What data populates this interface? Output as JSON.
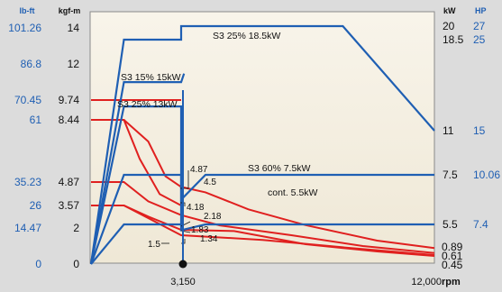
{
  "chart_data": {
    "type": "line",
    "title": "",
    "x_axis": {
      "label": "rpm",
      "ticks": [
        {
          "value": 3150,
          "label": "3,150"
        },
        {
          "value": 12000,
          "label": "12,000"
        }
      ],
      "range": [
        0,
        12000
      ],
      "marker": {
        "value": 3150
      }
    },
    "left_axes": {
      "unit_lbft": "lb-ft",
      "unit_kgfm": "kgf-m",
      "ticks": [
        {
          "kgfm": 14,
          "kgfm_label": "14",
          "lbft_label": "101.26"
        },
        {
          "kgfm": 12,
          "kgfm_label": "12",
          "lbft_label": "86.8"
        },
        {
          "kgfm": 9.74,
          "kgfm_label": "9.74",
          "lbft_label": "70.45"
        },
        {
          "kgfm": 8.44,
          "kgfm_label": "8.44",
          "lbft_label": "61"
        },
        {
          "kgfm": 4.87,
          "kgfm_label": "4.87",
          "lbft_label": "35.23"
        },
        {
          "kgfm": 3.57,
          "kgfm_label": "3.57",
          "lbft_label": "26"
        },
        {
          "kgfm": 2,
          "kgfm_label": "2",
          "lbft_label": "14.47"
        },
        {
          "kgfm": 0,
          "kgfm_label": "0",
          "lbft_label": "0"
        }
      ]
    },
    "right_axes": {
      "unit_kw": "kW",
      "unit_hp": "HP",
      "top": {
        "kw_label": "20",
        "hp_label": "27"
      },
      "ticks": [
        {
          "kw": 18.5,
          "kw_label": "18.5",
          "hp_label": "25"
        },
        {
          "kw": 11,
          "kw_label": "11",
          "hp_label": "15"
        },
        {
          "kw": 7.5,
          "kw_label": "7.5",
          "hp_label": "10.06"
        },
        {
          "kw": 5.5,
          "kw_label": "5.5",
          "hp_label": "7.4"
        }
      ],
      "end_torque_labels": [
        "0.89",
        "0.61",
        "0.45"
      ]
    },
    "power_series": [
      {
        "name": "S3 25% 18.5kW",
        "points": [
          [
            0,
            0
          ],
          [
            1150,
            18.5
          ],
          [
            3150,
            18.5
          ],
          [
            3150,
            20
          ],
          [
            5400,
            20
          ],
          [
            8800,
            20
          ],
          [
            12000,
            11
          ]
        ]
      },
      {
        "name": "S3 15% 15kW",
        "points": [
          [
            0,
            0
          ],
          [
            1150,
            15
          ],
          [
            3150,
            15
          ],
          [
            3250,
            15.7
          ]
        ]
      },
      {
        "name": "S3 25% 13kW",
        "points": [
          [
            0,
            0
          ],
          [
            1150,
            13
          ],
          [
            3150,
            13
          ],
          [
            3150,
            5.5
          ]
        ]
      },
      {
        "name": "S3 60% 7.5kW",
        "points": [
          [
            0,
            0
          ],
          [
            1150,
            7.5
          ],
          [
            3150,
            7.5
          ],
          [
            3150,
            6.5
          ],
          [
            4000,
            7.5
          ],
          [
            12000,
            7.5
          ]
        ]
      },
      {
        "name": "cont. 5.5kW",
        "points": [
          [
            0,
            0
          ],
          [
            1150,
            5.5
          ],
          [
            3150,
            5.5
          ],
          [
            3150,
            4.7
          ],
          [
            4000,
            5.5
          ],
          [
            12000,
            5.5
          ]
        ]
      }
    ],
    "torque_series": [
      {
        "points": [
          [
            0,
            9.74
          ],
          [
            1150,
            9.74
          ],
          [
            3150,
            9.74
          ]
        ]
      },
      {
        "points": [
          [
            0,
            8.44
          ],
          [
            1150,
            8.44
          ],
          [
            2000,
            7.2
          ],
          [
            2600,
            5.2
          ],
          [
            3150,
            4.6
          ],
          [
            4000,
            4.3
          ],
          [
            5500,
            3.3
          ],
          [
            7500,
            2.2
          ],
          [
            10000,
            1.3
          ],
          [
            12000,
            0.89
          ]
        ]
      },
      {
        "points": [
          [
            0,
            8.44
          ],
          [
            1150,
            8.44
          ],
          [
            1700,
            6.2
          ],
          [
            2400,
            4.2
          ],
          [
            3150,
            3.57
          ]
        ]
      },
      {
        "points": [
          [
            0,
            4.87
          ],
          [
            1150,
            4.87
          ],
          [
            2000,
            3.8
          ],
          [
            3150,
            2.9
          ],
          [
            4500,
            2.18
          ],
          [
            7000,
            1.6
          ],
          [
            9500,
            1.0
          ],
          [
            12000,
            0.61
          ]
        ]
      },
      {
        "points": [
          [
            0,
            3.57
          ],
          [
            1150,
            3.57
          ],
          [
            2000,
            2.8
          ],
          [
            3150,
            1.9
          ],
          [
            5000,
            1.83
          ],
          [
            7500,
            1.1
          ],
          [
            10000,
            0.7
          ],
          [
            12000,
            0.45
          ]
        ]
      },
      {
        "points": [
          [
            0,
            3.57
          ],
          [
            1150,
            3.57
          ],
          [
            3150,
            1.6
          ],
          [
            6000,
            1.34
          ],
          [
            9000,
            0.9
          ],
          [
            12000,
            0.5
          ]
        ]
      }
    ],
    "callouts": [
      "4.87",
      "4.5",
      "4.18",
      "2.18",
      "1.83",
      "1.34",
      "1.5"
    ],
    "colors": {
      "power": "#1f5fb3",
      "torque": "#e0201f",
      "axis_blue": "#1f5fb3",
      "axis_black": "#111111"
    }
  }
}
